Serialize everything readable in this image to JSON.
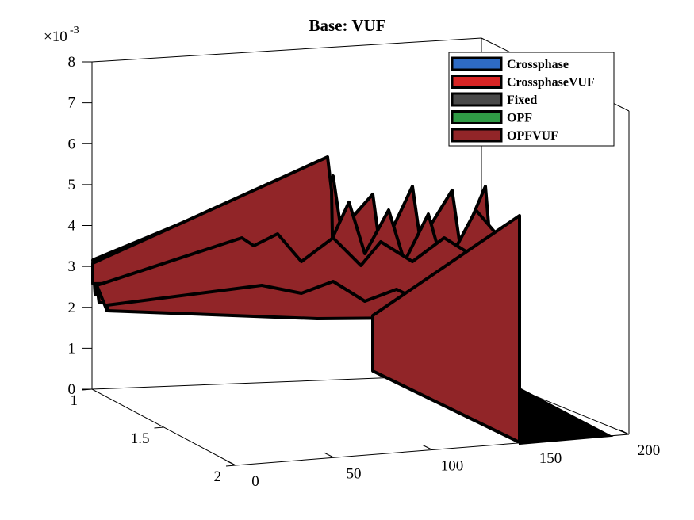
{
  "chart_data": {
    "type": "area",
    "view": "3d",
    "title": "Base: VUF",
    "z_exponent_label": "×10",
    "z_exponent_power": "-3",
    "x_ticks": [
      "0",
      "50",
      "100",
      "150",
      "200"
    ],
    "y_ticks": [
      "1",
      "1.5",
      "2"
    ],
    "z_ticks": [
      "0",
      "1",
      "2",
      "3",
      "4",
      "5",
      "6",
      "7",
      "8"
    ],
    "xlim": [
      0,
      200
    ],
    "ylim": [
      1,
      2
    ],
    "zlim": [
      0,
      0.008
    ],
    "legend_position": "top-right",
    "legend": [
      {
        "name": "Crossphase",
        "color": "#2e6bc4"
      },
      {
        "name": "CrossphaseVUF",
        "color": "#d82424"
      },
      {
        "name": "Fixed",
        "color": "#4a4a4a"
      },
      {
        "name": "OPF",
        "color": "#2f9a45"
      },
      {
        "name": "OPFVUF",
        "color": "#912528"
      }
    ],
    "surface_color": "#912528",
    "series": [
      {
        "name": "OPFVUF",
        "x": [
          0,
          20,
          40,
          60,
          80,
          100,
          120,
          125,
          128,
          140,
          160,
          180
        ],
        "values": [
          0.0031,
          0.0036,
          0.0042,
          0.0034,
          0.004,
          0.0038,
          0.0041,
          0.0,
          0.004,
          0.0036,
          0.0038,
          0.0
        ]
      }
    ]
  }
}
